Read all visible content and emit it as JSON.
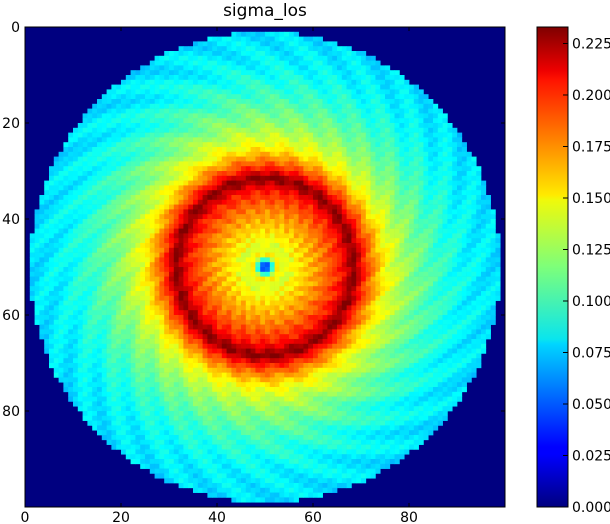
{
  "chart_data": [
    {
      "type": "heatmap",
      "title": "sigma_los",
      "xlabel": "",
      "ylabel": "",
      "grid_size": [
        100,
        100
      ],
      "xlim": [
        0,
        100
      ],
      "ylim": [
        100,
        0
      ],
      "y_inverted": true,
      "x_ticks": [
        0,
        20,
        40,
        60,
        80
      ],
      "y_ticks": [
        0,
        20,
        40,
        60,
        80
      ],
      "colormap": "jet",
      "background_value": 0.0,
      "field": {
        "center": [
          49.5,
          49.5
        ],
        "disk_radius": 49,
        "peak_ring_radius": 18.5,
        "peak_value": 0.233,
        "inner_ring_radius": 2.5,
        "inner_ring_value": 0.15,
        "center_value": 0.02,
        "radial_profile": [
          {
            "r": 0,
            "v": 0.02
          },
          {
            "r": 1,
            "v": 0.06
          },
          {
            "r": 2.5,
            "v": 0.15
          },
          {
            "r": 4,
            "v": 0.135
          },
          {
            "r": 8,
            "v": 0.155
          },
          {
            "r": 12,
            "v": 0.175
          },
          {
            "r": 16,
            "v": 0.2
          },
          {
            "r": 18.5,
            "v": 0.233
          },
          {
            "r": 21,
            "v": 0.19
          },
          {
            "r": 25,
            "v": 0.145
          },
          {
            "r": 30,
            "v": 0.12
          },
          {
            "r": 36,
            "v": 0.1
          },
          {
            "r": 42,
            "v": 0.087
          },
          {
            "r": 49,
            "v": 0.08
          }
        ]
      },
      "colorbar": {
        "range": [
          0.0,
          0.233
        ],
        "ticks": [
          "0.000",
          "0.025",
          "0.050",
          "0.075",
          "0.100",
          "0.125",
          "0.150",
          "0.175",
          "0.200",
          "0.225"
        ]
      }
    }
  ]
}
